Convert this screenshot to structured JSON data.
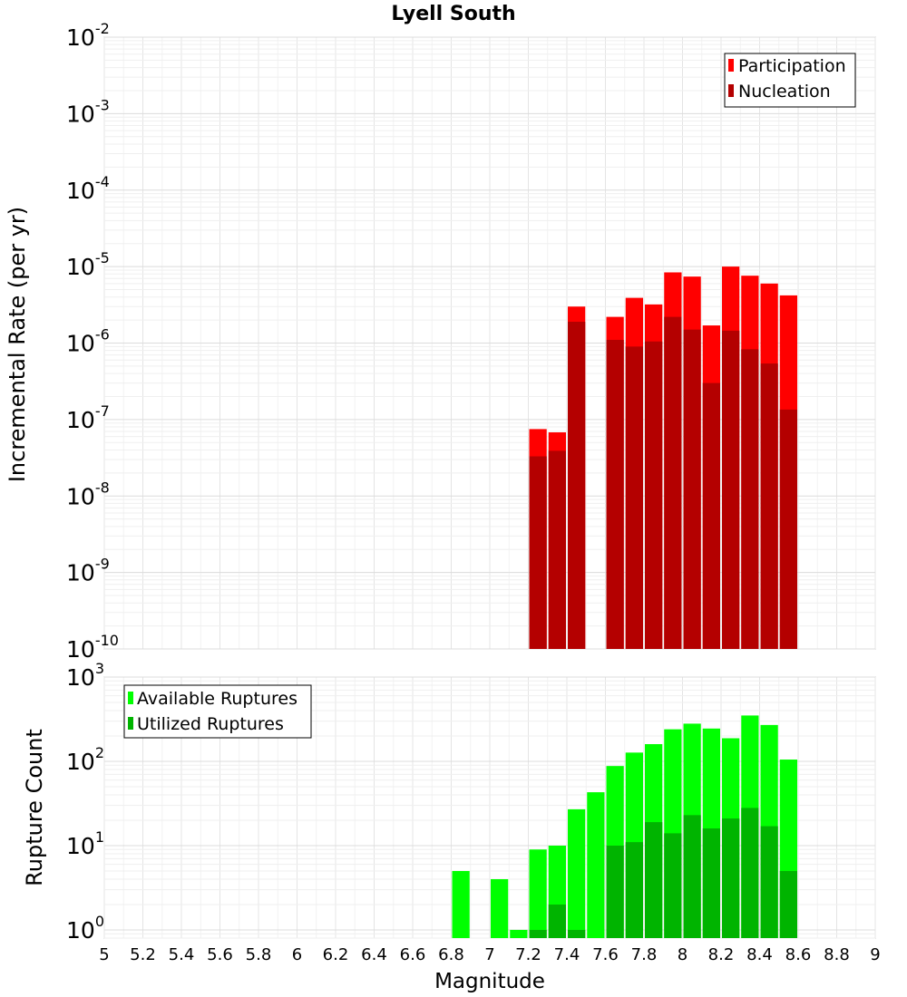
{
  "title": "Lyell South",
  "chart_data": [
    {
      "type": "bar",
      "name": "rate-chart",
      "title": "Lyell South",
      "xlabel": "",
      "ylabel": "Incremental Rate (per yr)",
      "yscale": "log",
      "ylim": [
        1e-10,
        0.01
      ],
      "xlim": [
        5,
        9
      ],
      "bin_width": 0.1,
      "y_ticks": [
        {
          "base": "10",
          "exp": "-10",
          "value": 1e-10
        },
        {
          "base": "10",
          "exp": "-9",
          "value": 1e-09
        },
        {
          "base": "10",
          "exp": "-8",
          "value": 1e-08
        },
        {
          "base": "10",
          "exp": "-7",
          "value": 1e-07
        },
        {
          "base": "10",
          "exp": "-6",
          "value": 1e-06
        },
        {
          "base": "10",
          "exp": "-5",
          "value": 1e-05
        },
        {
          "base": "10",
          "exp": "-4",
          "value": 0.0001
        },
        {
          "base": "10",
          "exp": "-3",
          "value": 0.001
        },
        {
          "base": "10",
          "exp": "-2",
          "value": 0.01
        }
      ],
      "legend": {
        "position": "top-right",
        "entries": [
          {
            "label": "Participation",
            "color": "#ff0000"
          },
          {
            "label": "Nucleation",
            "color": "#b40000"
          }
        ]
      },
      "series": [
        {
          "name": "Participation",
          "color": "#ff0000",
          "x": [
            7.25,
            7.35,
            7.45,
            7.65,
            7.75,
            7.85,
            7.95,
            8.05,
            8.15,
            8.25,
            8.35,
            8.45,
            8.55
          ],
          "values": [
            7.5e-08,
            6.8e-08,
            3e-06,
            2.2e-06,
            3.9e-06,
            3.2e-06,
            8.4e-06,
            7.4e-06,
            1.7e-06,
            1e-05,
            7.6e-06,
            6e-06,
            4.2e-06
          ]
        },
        {
          "name": "Nucleation",
          "color": "#b40000",
          "x": [
            7.25,
            7.35,
            7.45,
            7.65,
            7.75,
            7.85,
            7.95,
            8.05,
            8.15,
            8.25,
            8.35,
            8.45,
            8.55
          ],
          "values": [
            3.3e-08,
            3.9e-08,
            1.9e-06,
            1.1e-06,
            9e-07,
            1.05e-06,
            2.2e-06,
            1.5e-06,
            3e-07,
            1.45e-06,
            8.3e-07,
            5.4e-07,
            1.35e-07
          ]
        }
      ]
    },
    {
      "type": "bar",
      "name": "count-chart",
      "title": "",
      "xlabel": "Magnitude",
      "ylabel": "Rupture Count",
      "yscale": "log",
      "ylim": [
        0.8,
        1000
      ],
      "xlim": [
        5,
        9
      ],
      "bin_width": 0.1,
      "x_ticks": [
        "5",
        "5.2",
        "5.4",
        "5.6",
        "5.8",
        "6",
        "6.2",
        "6.4",
        "6.6",
        "6.8",
        "7",
        "7.2",
        "7.4",
        "7.6",
        "7.8",
        "8",
        "8.2",
        "8.4",
        "8.6",
        "8.8",
        "9"
      ],
      "y_ticks": [
        {
          "base": "10",
          "exp": "0",
          "value": 1
        },
        {
          "base": "10",
          "exp": "1",
          "value": 10
        },
        {
          "base": "10",
          "exp": "2",
          "value": 100
        },
        {
          "base": "10",
          "exp": "3",
          "value": 1000
        }
      ],
      "legend": {
        "position": "top-left",
        "entries": [
          {
            "label": "Available Ruptures",
            "color": "#00ff00"
          },
          {
            "label": "Utilized Ruptures",
            "color": "#00b400"
          }
        ]
      },
      "series": [
        {
          "name": "Available Ruptures",
          "color": "#00ff00",
          "x": [
            6.85,
            7.05,
            7.15,
            7.25,
            7.35,
            7.45,
            7.55,
            7.65,
            7.75,
            7.85,
            7.95,
            8.05,
            8.15,
            8.25,
            8.35,
            8.45,
            8.55
          ],
          "values": [
            5,
            4,
            1,
            9,
            10,
            27,
            43,
            88,
            127,
            160,
            240,
            280,
            245,
            188,
            350,
            270,
            105
          ]
        },
        {
          "name": "Utilized Ruptures",
          "color": "#00b400",
          "x": [
            7.25,
            7.35,
            7.45,
            7.65,
            7.75,
            7.85,
            7.95,
            8.05,
            8.15,
            8.25,
            8.35,
            8.45,
            8.55
          ],
          "values": [
            1,
            2,
            1,
            10,
            11,
            19,
            14,
            23,
            16,
            21,
            28,
            17,
            5
          ]
        }
      ]
    }
  ]
}
